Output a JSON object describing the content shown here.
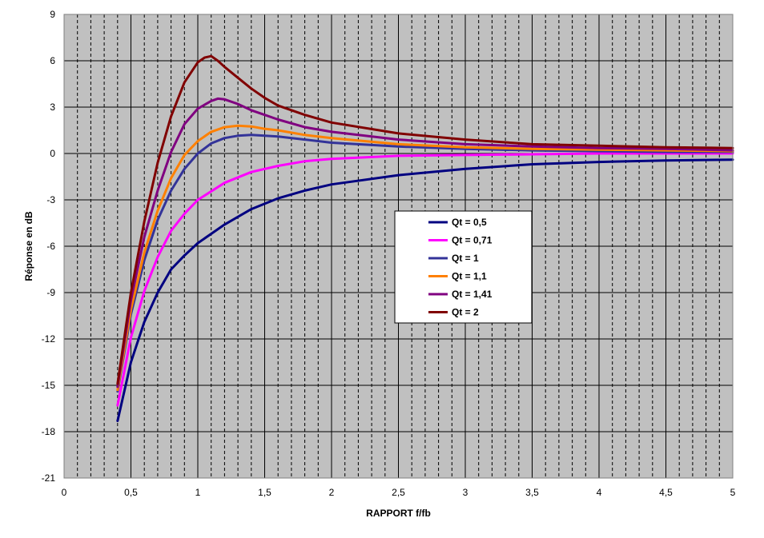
{
  "chart_data": {
    "type": "line",
    "xlabel": "RAPPORT f/fb",
    "ylabel": "Réponse en dB",
    "xlim": [
      0,
      5
    ],
    "ylim": [
      -21,
      9
    ],
    "x_ticks": [
      0,
      0.5,
      1,
      1.5,
      2,
      2.5,
      3,
      3.5,
      4,
      4.5,
      5
    ],
    "x_tick_labels": [
      "0",
      "0,5",
      "1",
      "1,5",
      "2",
      "2,5",
      "3",
      "3,5",
      "4",
      "4,5",
      "5"
    ],
    "y_ticks": [
      9,
      6,
      3,
      0,
      -3,
      -6,
      -9,
      -12,
      -15,
      -18,
      -21
    ],
    "y_tick_labels": [
      "9",
      "6",
      "3",
      "0",
      "-3",
      "-6",
      "-9",
      "-12",
      "-15",
      "-18",
      "-21"
    ],
    "x_minor_step": 0.1,
    "grid": true,
    "plot_background": "#c0c0c0",
    "legend_position": "center-right",
    "series": [
      {
        "name": "Qt = 0,5",
        "color": "#000080",
        "x": [
          0.4,
          0.5,
          0.6,
          0.7,
          0.8,
          0.9,
          1.0,
          1.2,
          1.4,
          1.6,
          1.8,
          2.0,
          2.5,
          3.0,
          3.5,
          4.0,
          4.5,
          5.0
        ],
        "y": [
          -17.3,
          -13.5,
          -10.9,
          -9.0,
          -7.5,
          -6.6,
          -5.8,
          -4.6,
          -3.6,
          -2.9,
          -2.4,
          -2.0,
          -1.4,
          -1.0,
          -0.7,
          -0.55,
          -0.45,
          -0.4
        ]
      },
      {
        "name": "Qt = 0,71",
        "color": "#ff00ff",
        "x": [
          0.4,
          0.5,
          0.6,
          0.7,
          0.8,
          0.9,
          1.0,
          1.2,
          1.4,
          1.6,
          1.8,
          2.0,
          2.5,
          3.0,
          3.5,
          4.0,
          4.5,
          5.0
        ],
        "y": [
          -16.3,
          -11.9,
          -8.9,
          -6.7,
          -5.0,
          -3.9,
          -3.0,
          -1.9,
          -1.2,
          -0.8,
          -0.5,
          -0.35,
          -0.15,
          -0.1,
          -0.05,
          0.0,
          0.0,
          0.0
        ]
      },
      {
        "name": "Qt = 1",
        "color": "#333399",
        "x": [
          0.4,
          0.5,
          0.6,
          0.7,
          0.8,
          0.9,
          1.0,
          1.1,
          1.2,
          1.3,
          1.4,
          1.5,
          1.6,
          1.8,
          2.0,
          2.5,
          3.0,
          3.5,
          4.0,
          4.5,
          5.0
        ],
        "y": [
          -15.4,
          -10.4,
          -6.9,
          -4.3,
          -2.4,
          -1.0,
          0.0,
          0.65,
          1.0,
          1.15,
          1.2,
          1.15,
          1.1,
          0.9,
          0.7,
          0.45,
          0.3,
          0.2,
          0.15,
          0.1,
          0.1
        ]
      },
      {
        "name": "Qt = 1,1",
        "color": "#ff8000",
        "x": [
          0.4,
          0.5,
          0.6,
          0.7,
          0.8,
          0.9,
          1.0,
          1.1,
          1.2,
          1.3,
          1.4,
          1.5,
          1.6,
          1.8,
          2.0,
          2.5,
          3.0,
          3.5,
          4.0,
          4.5,
          5.0
        ],
        "y": [
          -15.3,
          -10.1,
          -6.4,
          -3.7,
          -1.6,
          -0.1,
          0.8,
          1.4,
          1.7,
          1.8,
          1.75,
          1.6,
          1.5,
          1.2,
          1.0,
          0.6,
          0.4,
          0.3,
          0.25,
          0.2,
          0.15
        ]
      },
      {
        "name": "Qt = 1,41",
        "color": "#800080",
        "x": [
          0.4,
          0.5,
          0.6,
          0.7,
          0.8,
          0.9,
          1.0,
          1.1,
          1.15,
          1.2,
          1.3,
          1.4,
          1.5,
          1.6,
          1.8,
          2.0,
          2.5,
          3.0,
          3.5,
          4.0,
          4.5,
          5.0
        ],
        "y": [
          -15.1,
          -9.5,
          -5.4,
          -2.4,
          0.1,
          1.9,
          2.9,
          3.4,
          3.55,
          3.5,
          3.2,
          2.8,
          2.5,
          2.2,
          1.7,
          1.4,
          0.9,
          0.6,
          0.45,
          0.35,
          0.3,
          0.2
        ]
      },
      {
        "name": "Qt = 2",
        "color": "#800000",
        "x": [
          0.4,
          0.5,
          0.6,
          0.7,
          0.8,
          0.9,
          1.0,
          1.05,
          1.1,
          1.15,
          1.2,
          1.3,
          1.4,
          1.5,
          1.6,
          1.8,
          2.0,
          2.5,
          3.0,
          3.5,
          4.0,
          4.5,
          5.0
        ],
        "y": [
          -14.9,
          -9.0,
          -4.4,
          -0.6,
          2.4,
          4.6,
          5.9,
          6.2,
          6.3,
          6.0,
          5.6,
          4.9,
          4.2,
          3.6,
          3.1,
          2.5,
          2.0,
          1.3,
          0.9,
          0.6,
          0.5,
          0.4,
          0.35
        ]
      }
    ]
  }
}
